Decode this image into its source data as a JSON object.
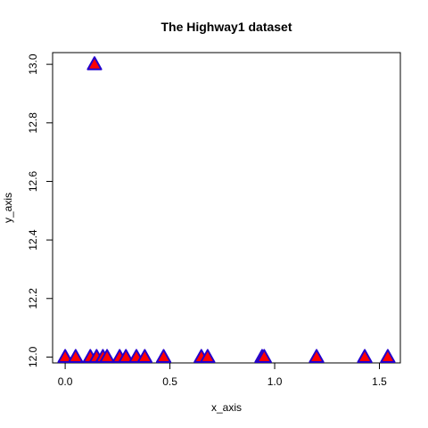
{
  "chart_data": {
    "type": "scatter",
    "title": "The Highway1 dataset",
    "xlabel": "x_axis",
    "ylabel": "y_axis",
    "xlim": [
      -0.06,
      1.6
    ],
    "ylim": [
      11.98,
      13.04
    ],
    "xticks": [
      0.0,
      0.5,
      1.0,
      1.5
    ],
    "xtick_labels": [
      "0.0",
      "0.5",
      "1.0",
      "1.5"
    ],
    "yticks": [
      12.0,
      12.2,
      12.4,
      12.6,
      12.8,
      13.0
    ],
    "ytick_labels": [
      "12.0",
      "12.2",
      "12.4",
      "12.6",
      "12.8",
      "13.0"
    ],
    "grid": false,
    "marker": "triangle",
    "marker_fill": "#ff0000",
    "marker_edge": "#2200cc",
    "points": [
      {
        "x": 0.0,
        "y": 12.0
      },
      {
        "x": 0.05,
        "y": 12.0
      },
      {
        "x": 0.12,
        "y": 12.0
      },
      {
        "x": 0.15,
        "y": 12.0
      },
      {
        "x": 0.18,
        "y": 12.0
      },
      {
        "x": 0.2,
        "y": 12.0
      },
      {
        "x": 0.26,
        "y": 12.0
      },
      {
        "x": 0.29,
        "y": 12.0
      },
      {
        "x": 0.34,
        "y": 12.0
      },
      {
        "x": 0.38,
        "y": 12.0
      },
      {
        "x": 0.47,
        "y": 12.0
      },
      {
        "x": 0.65,
        "y": 12.0
      },
      {
        "x": 0.68,
        "y": 12.0
      },
      {
        "x": 0.94,
        "y": 12.0
      },
      {
        "x": 0.95,
        "y": 12.0
      },
      {
        "x": 1.2,
        "y": 12.0
      },
      {
        "x": 1.43,
        "y": 12.0
      },
      {
        "x": 1.54,
        "y": 12.0
      },
      {
        "x": 0.14,
        "y": 13.0
      }
    ]
  }
}
